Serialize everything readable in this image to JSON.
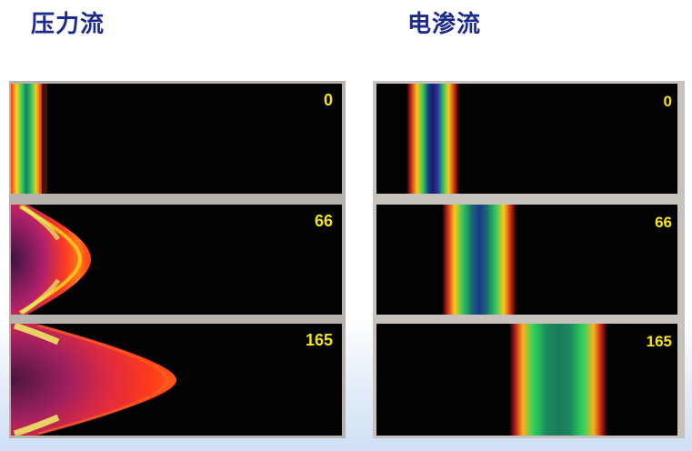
{
  "titles": {
    "pressure_flow": "压力流",
    "electroosmotic_flow": "电渗流"
  },
  "panels": {
    "pressure": [
      {
        "time": "0"
      },
      {
        "time": "66"
      },
      {
        "time": "165"
      }
    ],
    "electroosmotic": [
      {
        "time": "0"
      },
      {
        "time": "66"
      },
      {
        "time": "165"
      }
    ]
  },
  "colors": {
    "title": "#1c2a8c",
    "label": "#f5e41a",
    "background": "#020202"
  }
}
